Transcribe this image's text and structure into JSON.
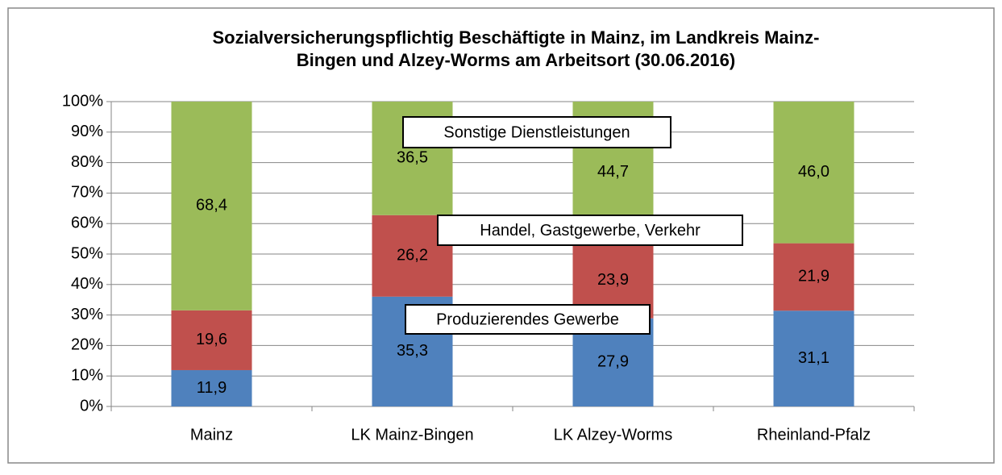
{
  "chart_data": {
    "type": "bar",
    "stacking": "percent",
    "title": [
      "Sozialversicherungspflichtig Beschäftigte in Mainz, im Landkreis Mainz-",
      "Bingen und Alzey-Worms am Arbeitsort (30.06.2016)"
    ],
    "categories": [
      "Mainz",
      "LK Mainz-Bingen",
      "LK Alzey-Worms",
      "Rheinland-Pfalz"
    ],
    "series": [
      {
        "name": "Produzierendes Gewerbe",
        "color": "#4f81bd",
        "values": [
          11.9,
          35.3,
          27.9,
          31.1
        ],
        "value_labels": [
          "11,9",
          "35,3",
          "27,9",
          "31,1"
        ]
      },
      {
        "name": "Handel, Gastgewerbe, Verkehr",
        "color": "#c0504d",
        "values": [
          19.6,
          26.2,
          23.9,
          21.9
        ],
        "value_labels": [
          "19,6",
          "26,2",
          "23,9",
          "21,9"
        ]
      },
      {
        "name": "Sonstige Dienstleistungen",
        "color": "#9bbb59",
        "values": [
          68.4,
          36.5,
          44.7,
          46.0
        ],
        "value_labels": [
          "68,4",
          "36,5",
          "44,7",
          "46,0"
        ]
      }
    ],
    "ylim": [
      0,
      100
    ],
    "yticks": [
      {
        "value": 0,
        "label": "0%"
      },
      {
        "value": 10,
        "label": "10%"
      },
      {
        "value": 20,
        "label": "20%"
      },
      {
        "value": 30,
        "label": "30%"
      },
      {
        "value": 40,
        "label": "40%"
      },
      {
        "value": 50,
        "label": "50%"
      },
      {
        "value": 60,
        "label": "60%"
      },
      {
        "value": 70,
        "label": "70%"
      },
      {
        "value": 80,
        "label": "80%"
      },
      {
        "value": 90,
        "label": "90%"
      },
      {
        "value": 100,
        "label": "100%"
      }
    ],
    "grid": true
  }
}
